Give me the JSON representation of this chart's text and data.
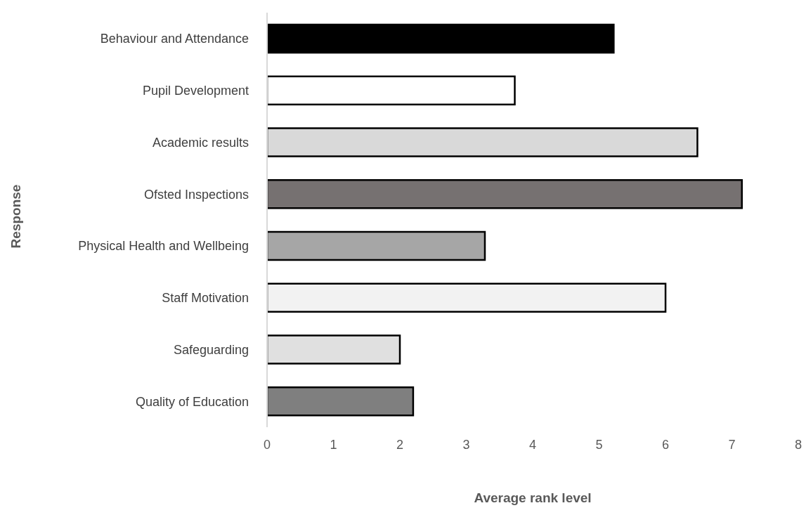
{
  "chart_data": {
    "type": "bar",
    "orientation": "horizontal",
    "xlabel": "Average rank level",
    "ylabel": "Response",
    "categories": [
      "Behaviour and Attendance",
      "Pupil Development",
      "Academic results",
      "Ofsted Inspections",
      "Physical Health and Wellbeing",
      "Staff Motivation",
      "Safeguarding",
      "Quality of Education"
    ],
    "values": [
      5.22,
      3.73,
      6.48,
      7.15,
      3.28,
      6.0,
      2.0,
      2.2
    ],
    "colors": [
      "#000000",
      "#ffffff",
      "#d9d9d9",
      "#767171",
      "#a6a6a6",
      "#f2f2f2",
      "#e0e0e0",
      "#7f7f7f"
    ],
    "xlim": [
      0,
      8
    ],
    "xticks": [
      0,
      1,
      2,
      3,
      4,
      5,
      6,
      7,
      8
    ],
    "grid": false,
    "legend": false
  }
}
